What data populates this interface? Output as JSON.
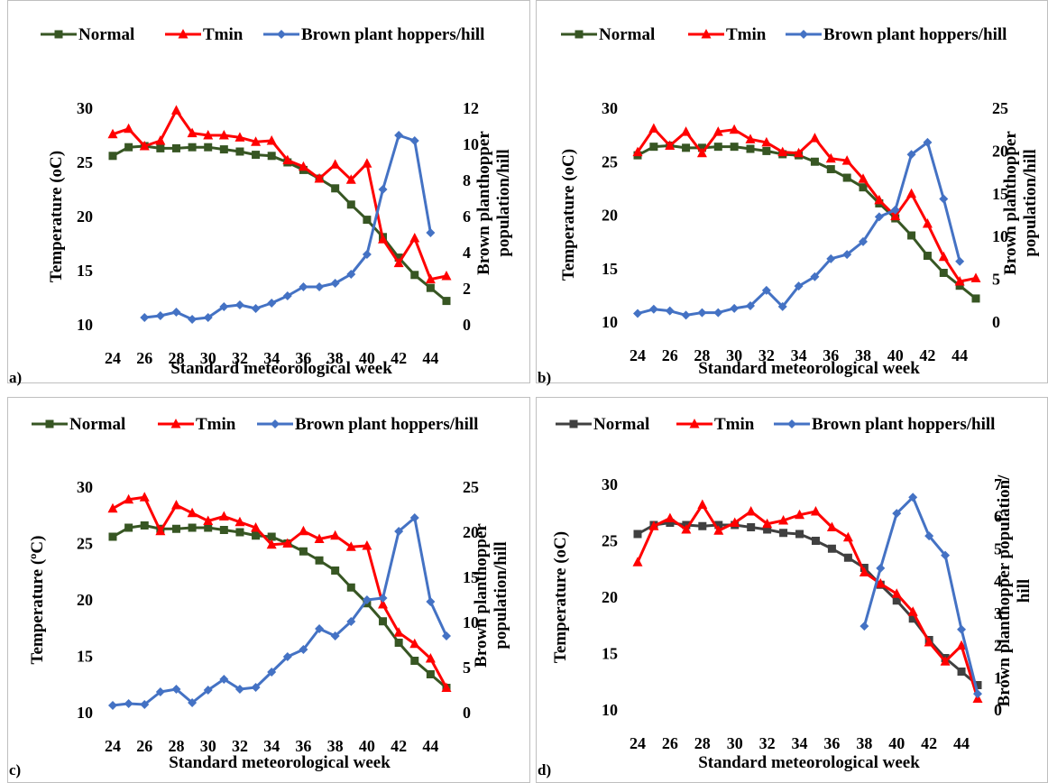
{
  "chart_data": [
    {
      "panel_label": "a)",
      "type": "line",
      "xlabel": "Standard meteorological week",
      "ylabel_left": "Temperature (oC)",
      "ylabel_right_lines": [
        "Brown planthopper",
        "population/hill"
      ],
      "x_ticks": [
        "24",
        "26",
        "28",
        "30",
        "32",
        "34",
        "36",
        "38",
        "40",
        "42",
        "44"
      ],
      "xlim": [
        24,
        45
      ],
      "ylim_left": [
        10,
        30
      ],
      "ylim_right": [
        0,
        12
      ],
      "yticks_left": [
        "10",
        "15",
        "20",
        "25",
        "30"
      ],
      "yticks_right": [
        "0",
        "2",
        "4",
        "6",
        "8",
        "10",
        "12"
      ],
      "legend": "top",
      "series": [
        {
          "name": "Normal",
          "axis": "left",
          "color": "#375623",
          "marker": "square",
          "x": [
            24,
            25,
            26,
            27,
            28,
            29,
            30,
            31,
            32,
            33,
            34,
            35,
            36,
            37,
            38,
            39,
            40,
            41,
            42,
            43,
            44,
            45
          ],
          "values": [
            25.6,
            26.4,
            26.5,
            26.3,
            26.3,
            26.4,
            26.4,
            26.2,
            26.0,
            25.7,
            25.6,
            25.0,
            24.3,
            23.5,
            22.6,
            21.1,
            19.7,
            18.1,
            16.2,
            14.6,
            13.4,
            12.2
          ]
        },
        {
          "name": "Tmin",
          "axis": "left",
          "color": "#ff0000",
          "marker": "triangle",
          "x": [
            24,
            25,
            26,
            27,
            28,
            29,
            30,
            31,
            32,
            33,
            34,
            35,
            36,
            37,
            38,
            39,
            40,
            41,
            42,
            43,
            44,
            45
          ],
          "values": [
            27.6,
            28.1,
            26.5,
            27.0,
            29.8,
            27.7,
            27.5,
            27.5,
            27.3,
            26.9,
            27.0,
            25.2,
            24.6,
            23.5,
            24.8,
            23.4,
            24.9,
            17.9,
            15.7,
            18.0,
            14.2,
            14.5
          ]
        },
        {
          "name": "Brown plant hoppers/hill",
          "axis": "right",
          "color": "#4472c4",
          "marker": "diamond",
          "x": [
            26,
            27,
            28,
            29,
            30,
            31,
            32,
            33,
            34,
            35,
            36,
            37,
            38,
            39,
            40,
            41,
            42,
            43,
            44
          ],
          "values": [
            0.4,
            0.5,
            0.7,
            0.3,
            0.4,
            1.0,
            1.1,
            0.9,
            1.2,
            1.6,
            2.1,
            2.1,
            2.3,
            2.8,
            3.9,
            7.5,
            10.5,
            10.2,
            5.1
          ]
        }
      ]
    },
    {
      "panel_label": "b)",
      "type": "line",
      "xlabel": "Standard meteorological week",
      "ylabel_left": "Temperature (oC)",
      "ylabel_right_lines": [
        "Brown planthopper",
        "population/hill"
      ],
      "x_ticks": [
        "24",
        "26",
        "28",
        "30",
        "32",
        "34",
        "36",
        "38",
        "40",
        "42",
        "44"
      ],
      "xlim": [
        24,
        45
      ],
      "ylim_left": [
        10,
        30
      ],
      "ylim_right": [
        0,
        25
      ],
      "yticks_left": [
        "10",
        "15",
        "20",
        "25",
        "30"
      ],
      "yticks_right": [
        "0",
        "5",
        "10",
        "15",
        "20",
        "25"
      ],
      "legend": "top",
      "series": [
        {
          "name": "Normal",
          "axis": "left",
          "color": "#375623",
          "marker": "square",
          "x": [
            24,
            25,
            26,
            27,
            28,
            29,
            30,
            31,
            32,
            33,
            34,
            35,
            36,
            37,
            38,
            39,
            40,
            41,
            42,
            43,
            44,
            45
          ],
          "values": [
            25.6,
            26.4,
            26.5,
            26.3,
            26.3,
            26.4,
            26.4,
            26.2,
            26.0,
            25.7,
            25.6,
            25.0,
            24.3,
            23.5,
            22.6,
            21.1,
            19.7,
            18.1,
            16.2,
            14.6,
            13.4,
            12.2
          ]
        },
        {
          "name": "Tmin",
          "axis": "left",
          "color": "#ff0000",
          "marker": "triangle",
          "x": [
            24,
            25,
            26,
            27,
            28,
            29,
            30,
            31,
            32,
            33,
            34,
            35,
            36,
            37,
            38,
            39,
            40,
            41,
            42,
            43,
            44,
            45
          ],
          "values": [
            25.9,
            28.1,
            26.5,
            27.8,
            25.8,
            27.8,
            28.0,
            27.1,
            26.8,
            25.9,
            25.8,
            27.2,
            25.3,
            25.1,
            23.4,
            21.4,
            19.9,
            22.0,
            19.2,
            16.1,
            13.8,
            14.1
          ]
        },
        {
          "name": "Brown plant hoppers/hill",
          "axis": "right",
          "color": "#4472c4",
          "marker": "diamond",
          "x": [
            24,
            25,
            26,
            27,
            28,
            29,
            30,
            31,
            32,
            33,
            34,
            35,
            36,
            37,
            38,
            39,
            40,
            41,
            42,
            43,
            44
          ],
          "values": [
            1.0,
            1.5,
            1.3,
            0.8,
            1.1,
            1.1,
            1.6,
            1.9,
            3.7,
            1.8,
            4.2,
            5.3,
            7.4,
            7.9,
            9.4,
            12.3,
            13.1,
            19.6,
            21.0,
            14.4,
            7.1
          ]
        }
      ]
    },
    {
      "panel_label": "c)",
      "type": "line",
      "xlabel": "Standard meteorological week",
      "ylabel_left": "Temperature (ºC)",
      "ylabel_right_lines": [
        "Brown planthopper",
        "population/hill"
      ],
      "x_ticks": [
        "24",
        "26",
        "28",
        "30",
        "32",
        "34",
        "36",
        "38",
        "40",
        "42",
        "44"
      ],
      "xlim": [
        24,
        45
      ],
      "ylim_left": [
        10,
        30
      ],
      "ylim_right": [
        0,
        25
      ],
      "yticks_left": [
        "10",
        "15",
        "20",
        "25",
        "30"
      ],
      "yticks_right": [
        "0",
        "5",
        "10",
        "15",
        "20",
        "25"
      ],
      "legend": "top",
      "series": [
        {
          "name": "Normal",
          "axis": "left",
          "color": "#375623",
          "marker": "square",
          "x": [
            24,
            25,
            26,
            27,
            28,
            29,
            30,
            31,
            32,
            33,
            34,
            35,
            36,
            37,
            38,
            39,
            40,
            41,
            42,
            43,
            44,
            45
          ],
          "values": [
            25.6,
            26.4,
            26.6,
            26.3,
            26.3,
            26.4,
            26.4,
            26.2,
            26.0,
            25.7,
            25.6,
            25.0,
            24.3,
            23.5,
            22.6,
            21.1,
            19.7,
            18.1,
            16.2,
            14.6,
            13.4,
            12.2
          ]
        },
        {
          "name": "Tmin",
          "axis": "left",
          "color": "#ff0000",
          "marker": "triangle",
          "x": [
            24,
            25,
            26,
            27,
            28,
            29,
            30,
            31,
            32,
            33,
            34,
            35,
            36,
            37,
            38,
            39,
            40,
            41,
            42,
            43,
            44,
            45
          ],
          "values": [
            28.1,
            28.9,
            29.1,
            26.1,
            28.4,
            27.7,
            27.0,
            27.4,
            26.9,
            26.4,
            24.9,
            25.0,
            26.1,
            25.4,
            25.7,
            24.7,
            24.8,
            19.6,
            17.1,
            16.1,
            14.8,
            12.2
          ]
        },
        {
          "name": "Brown plant hoppers/hill",
          "axis": "right",
          "color": "#4472c4",
          "marker": "diamond",
          "x": [
            24,
            25,
            26,
            27,
            28,
            29,
            30,
            31,
            32,
            33,
            34,
            35,
            36,
            37,
            38,
            39,
            40,
            41,
            42,
            43,
            44,
            45
          ],
          "values": [
            0.8,
            1.0,
            0.9,
            2.3,
            2.6,
            1.1,
            2.5,
            3.7,
            2.6,
            2.8,
            4.5,
            6.2,
            7.0,
            9.3,
            8.5,
            10.1,
            12.5,
            12.7,
            20.1,
            21.6,
            12.3,
            8.5
          ]
        }
      ]
    },
    {
      "panel_label": "d)",
      "type": "line",
      "xlabel": "Standard meteorological week",
      "ylabel_left": "Temperature (oC)",
      "ylabel_right_lines": [
        "Brown planthopper population/",
        "hill"
      ],
      "x_ticks": [
        "24",
        "26",
        "28",
        "30",
        "32",
        "34",
        "36",
        "38",
        "40",
        "42",
        "44"
      ],
      "xlim": [
        24,
        45
      ],
      "ylim_left": [
        10,
        30
      ],
      "ylim_right": [
        0,
        7
      ],
      "yticks_left": [
        "10",
        "15",
        "20",
        "25",
        "30"
      ],
      "yticks_right": [
        "0",
        "1",
        "2",
        "3",
        "4",
        "5",
        "6",
        "7"
      ],
      "legend": "top",
      "series": [
        {
          "name": "Normal",
          "axis": "left",
          "color": "#404040",
          "marker": "square",
          "x": [
            24,
            25,
            26,
            27,
            28,
            29,
            30,
            31,
            32,
            33,
            34,
            35,
            36,
            37,
            38,
            39,
            40,
            41,
            42,
            43,
            44,
            45
          ],
          "values": [
            25.6,
            26.4,
            26.6,
            26.4,
            26.3,
            26.4,
            26.4,
            26.2,
            26.0,
            25.7,
            25.6,
            25.0,
            24.3,
            23.5,
            22.6,
            21.1,
            19.7,
            18.1,
            16.2,
            14.6,
            13.4,
            12.2
          ]
        },
        {
          "name": "Tmin",
          "axis": "left",
          "color": "#ff0000",
          "marker": "triangle",
          "x": [
            24,
            25,
            26,
            27,
            28,
            29,
            30,
            31,
            32,
            33,
            34,
            35,
            36,
            37,
            38,
            39,
            40,
            41,
            42,
            43,
            44,
            45
          ],
          "values": [
            23.1,
            26.3,
            27.0,
            26.0,
            28.2,
            25.9,
            26.6,
            27.6,
            26.5,
            26.8,
            27.3,
            27.6,
            26.2,
            25.3,
            22.2,
            21.2,
            20.3,
            18.7,
            16.0,
            14.3,
            15.7,
            11.0
          ]
        },
        {
          "name": "Brown plant hoppers/hill",
          "axis": "right",
          "color": "#4472c4",
          "marker": "diamond",
          "x": [
            38,
            39,
            40,
            41,
            42,
            43,
            44,
            45
          ],
          "values": [
            2.6,
            4.4,
            6.1,
            6.6,
            5.4,
            4.8,
            2.5,
            0.5
          ]
        }
      ]
    }
  ]
}
